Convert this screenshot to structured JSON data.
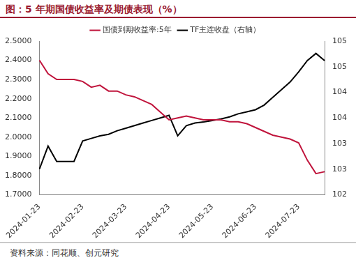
{
  "chart_data": {
    "type": "line",
    "title": "图：5 年期国债收益率及期债表现（%）",
    "source": "资料来源：同花顺、创元研究",
    "categories": [
      "2024-01-23",
      null,
      null,
      null,
      null,
      "2024-02-23",
      null,
      null,
      null,
      null,
      "2024-03-23",
      null,
      null,
      null,
      null,
      "2024-04-23",
      null,
      null,
      null,
      null,
      "2024-05-23",
      null,
      null,
      null,
      null,
      "2024-06-23",
      null,
      null,
      null,
      null,
      "2024-07-23",
      null,
      null,
      null
    ],
    "series": [
      {
        "name": "国债到期收益率:5年",
        "color": "#c0143c",
        "axis": "y",
        "values": [
          2.4,
          2.33,
          2.3,
          2.3,
          2.3,
          2.29,
          2.26,
          2.27,
          2.24,
          2.24,
          2.22,
          2.21,
          2.19,
          2.17,
          2.13,
          2.09,
          2.1,
          2.11,
          2.1,
          2.09,
          2.09,
          2.09,
          2.08,
          2.08,
          2.07,
          2.05,
          2.03,
          2.01,
          2.0,
          1.99,
          1.97,
          1.88,
          1.81,
          1.82
        ]
      },
      {
        "name": "TF主连收盘（右轴）",
        "color": "#000000",
        "axis": "y2",
        "values": [
          102.5,
          102.95,
          102.65,
          102.65,
          102.65,
          103.05,
          103.1,
          103.15,
          103.18,
          103.25,
          103.3,
          103.35,
          103.4,
          103.45,
          103.5,
          103.55,
          103.15,
          103.35,
          103.4,
          103.42,
          103.45,
          103.48,
          103.52,
          103.58,
          103.62,
          103.66,
          103.75,
          103.9,
          104.05,
          104.2,
          104.4,
          104.62,
          104.76,
          104.62
        ]
      }
    ],
    "ylim": [
      1.7,
      2.5
    ],
    "yticks": [
      {
        "value": 1.7,
        "label": "1.7000"
      },
      {
        "value": 1.8,
        "label": "1.8000"
      },
      {
        "value": 1.9,
        "label": "1.9000"
      },
      {
        "value": 2.0,
        "label": "2.0000"
      },
      {
        "value": 2.1,
        "label": "2.1000"
      },
      {
        "value": 2.2,
        "label": "2.2000"
      },
      {
        "value": 2.3,
        "label": "2.3000"
      },
      {
        "value": 2.4,
        "label": "2.4000"
      },
      {
        "value": 2.5,
        "label": "2.5000"
      }
    ],
    "y2lim": [
      102,
      105
    ],
    "y2ticks": [
      102,
      {
        "value": 102.5,
        "label": "103"
      },
      103,
      {
        "value": 103.5,
        "label": "104"
      },
      104,
      {
        "value": 104.5,
        "label": "105"
      },
      105
    ],
    "grid": false,
    "legend": "top"
  }
}
